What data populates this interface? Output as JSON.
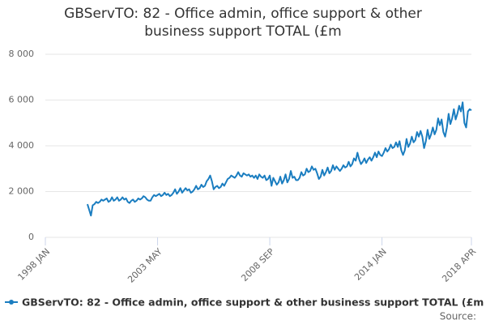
{
  "chart_data": {
    "type": "line",
    "title": "GBServTO: 82 - Office admin, office support & other business support TOTAL (£m",
    "source_label": "Source:",
    "categories": [
      "1998 JAN",
      null,
      null,
      null,
      null,
      null,
      null,
      null,
      null,
      null,
      null,
      null,
      null,
      null,
      null,
      null,
      null,
      null,
      null,
      null,
      null,
      null,
      null,
      null,
      null,
      null,
      null,
      null,
      null,
      null,
      null,
      null,
      null,
      null,
      null,
      null,
      null,
      null,
      null,
      null,
      null,
      null,
      null,
      null,
      null,
      null,
      null,
      null,
      null,
      null,
      null,
      null,
      null,
      null,
      null,
      null,
      null,
      null,
      null,
      null,
      null,
      null,
      null,
      null,
      "2003 MAY",
      null,
      null,
      null,
      null,
      null,
      null,
      null,
      null,
      null,
      null,
      null,
      null,
      null,
      null,
      null,
      null,
      null,
      null,
      null,
      null,
      null,
      null,
      null,
      null,
      null,
      null,
      null,
      null,
      null,
      null,
      null,
      null,
      null,
      null,
      null,
      null,
      null,
      null,
      null,
      null,
      null,
      null,
      null,
      null,
      null,
      null,
      null,
      null,
      null,
      null,
      null,
      null,
      null,
      null,
      null,
      null,
      null,
      null,
      null,
      null,
      null,
      null,
      null,
      "2008 SEP",
      null,
      null,
      null,
      null,
      null,
      null,
      null,
      null,
      null,
      null,
      null,
      null,
      null,
      null,
      null,
      null,
      null,
      null,
      null,
      null,
      null,
      null,
      null,
      null,
      null,
      null,
      null,
      null,
      null,
      null,
      null,
      null,
      null,
      null,
      null,
      null,
      null,
      null,
      null,
      null,
      null,
      null,
      null,
      null,
      null,
      null,
      null,
      null,
      null,
      null,
      null,
      null,
      null,
      null,
      null,
      null,
      null,
      null,
      null,
      null,
      null,
      null,
      null,
      "2014 JAN",
      null,
      null,
      null,
      null,
      null,
      null,
      null,
      null,
      null,
      null,
      null,
      null,
      null,
      null,
      null,
      null,
      null,
      null,
      null,
      null,
      null,
      null,
      null,
      null,
      null,
      null,
      null,
      null,
      null,
      null,
      null,
      null,
      null,
      null,
      null,
      null,
      null,
      null,
      null,
      null,
      null,
      null,
      null,
      null,
      null,
      null,
      null,
      null,
      null,
      null,
      "2018 APR"
    ],
    "series": [
      {
        "name": "GBServTO: 82 - Office admin, office support & other business support TOTAL (£m",
        "color": "#1a7dc0",
        "values": [
          null,
          null,
          null,
          null,
          null,
          null,
          null,
          null,
          null,
          null,
          null,
          null,
          null,
          null,
          null,
          null,
          null,
          null,
          null,
          null,
          null,
          null,
          null,
          null,
          1450,
          1200,
          950,
          1400,
          1450,
          1550,
          1500,
          1550,
          1650,
          1600,
          1650,
          1700,
          1550,
          1600,
          1750,
          1600,
          1650,
          1750,
          1600,
          1650,
          1750,
          1650,
          1700,
          1550,
          1500,
          1600,
          1650,
          1550,
          1600,
          1700,
          1650,
          1700,
          1800,
          1750,
          1650,
          1600,
          1600,
          1750,
          1850,
          1800,
          1850,
          1900,
          1800,
          1850,
          1950,
          1850,
          1900,
          1800,
          1850,
          1950,
          2100,
          1900,
          2000,
          2150,
          1950,
          2050,
          2150,
          2050,
          2100,
          1950,
          2000,
          2100,
          2250,
          2100,
          2150,
          2300,
          2200,
          2250,
          2450,
          2550,
          2700,
          2450,
          2100,
          2200,
          2250,
          2150,
          2200,
          2350,
          2250,
          2400,
          2550,
          2600,
          2700,
          2650,
          2600,
          2700,
          2850,
          2700,
          2650,
          2800,
          2750,
          2700,
          2750,
          2650,
          2700,
          2600,
          2700,
          2550,
          2750,
          2650,
          2600,
          2700,
          2500,
          2550,
          2700,
          2250,
          2600,
          2450,
          2300,
          2400,
          2650,
          2350,
          2500,
          2750,
          2400,
          2550,
          2900,
          2600,
          2650,
          2500,
          2500,
          2600,
          2850,
          2700,
          2750,
          3000,
          2850,
          2900,
          3100,
          2950,
          3000,
          2800,
          2550,
          2650,
          2950,
          2700,
          2850,
          3050,
          2800,
          2900,
          3150,
          2950,
          3100,
          3000,
          2900,
          3000,
          3150,
          3050,
          3100,
          3300,
          3100,
          3200,
          3450,
          3350,
          3700,
          3400,
          3200,
          3300,
          3450,
          3250,
          3400,
          3500,
          3350,
          3500,
          3700,
          3500,
          3750,
          3600,
          3550,
          3700,
          3900,
          3750,
          3850,
          4050,
          3900,
          3950,
          4150,
          3950,
          4200,
          3800,
          3600,
          3800,
          4300,
          3950,
          4100,
          4400,
          4150,
          4250,
          4600,
          4400,
          4650,
          4400,
          3900,
          4200,
          4700,
          4300,
          4500,
          4800,
          4500,
          4700,
          5200,
          4900,
          5150,
          4600,
          4400,
          4800,
          5400,
          4950,
          5200,
          5600,
          5150,
          5400,
          5750,
          5500,
          5900,
          5000,
          4800,
          5500,
          5600,
          5550
        ]
      }
    ],
    "ylim": [
      0,
      8000
    ],
    "yticks": [
      0,
      {
        "value": 2000,
        "label": "2 000"
      },
      {
        "value": 4000,
        "label": "4 000"
      },
      {
        "value": 6000,
        "label": "6 000"
      },
      {
        "value": 8000,
        "label": "8 000"
      }
    ],
    "grid": true
  }
}
